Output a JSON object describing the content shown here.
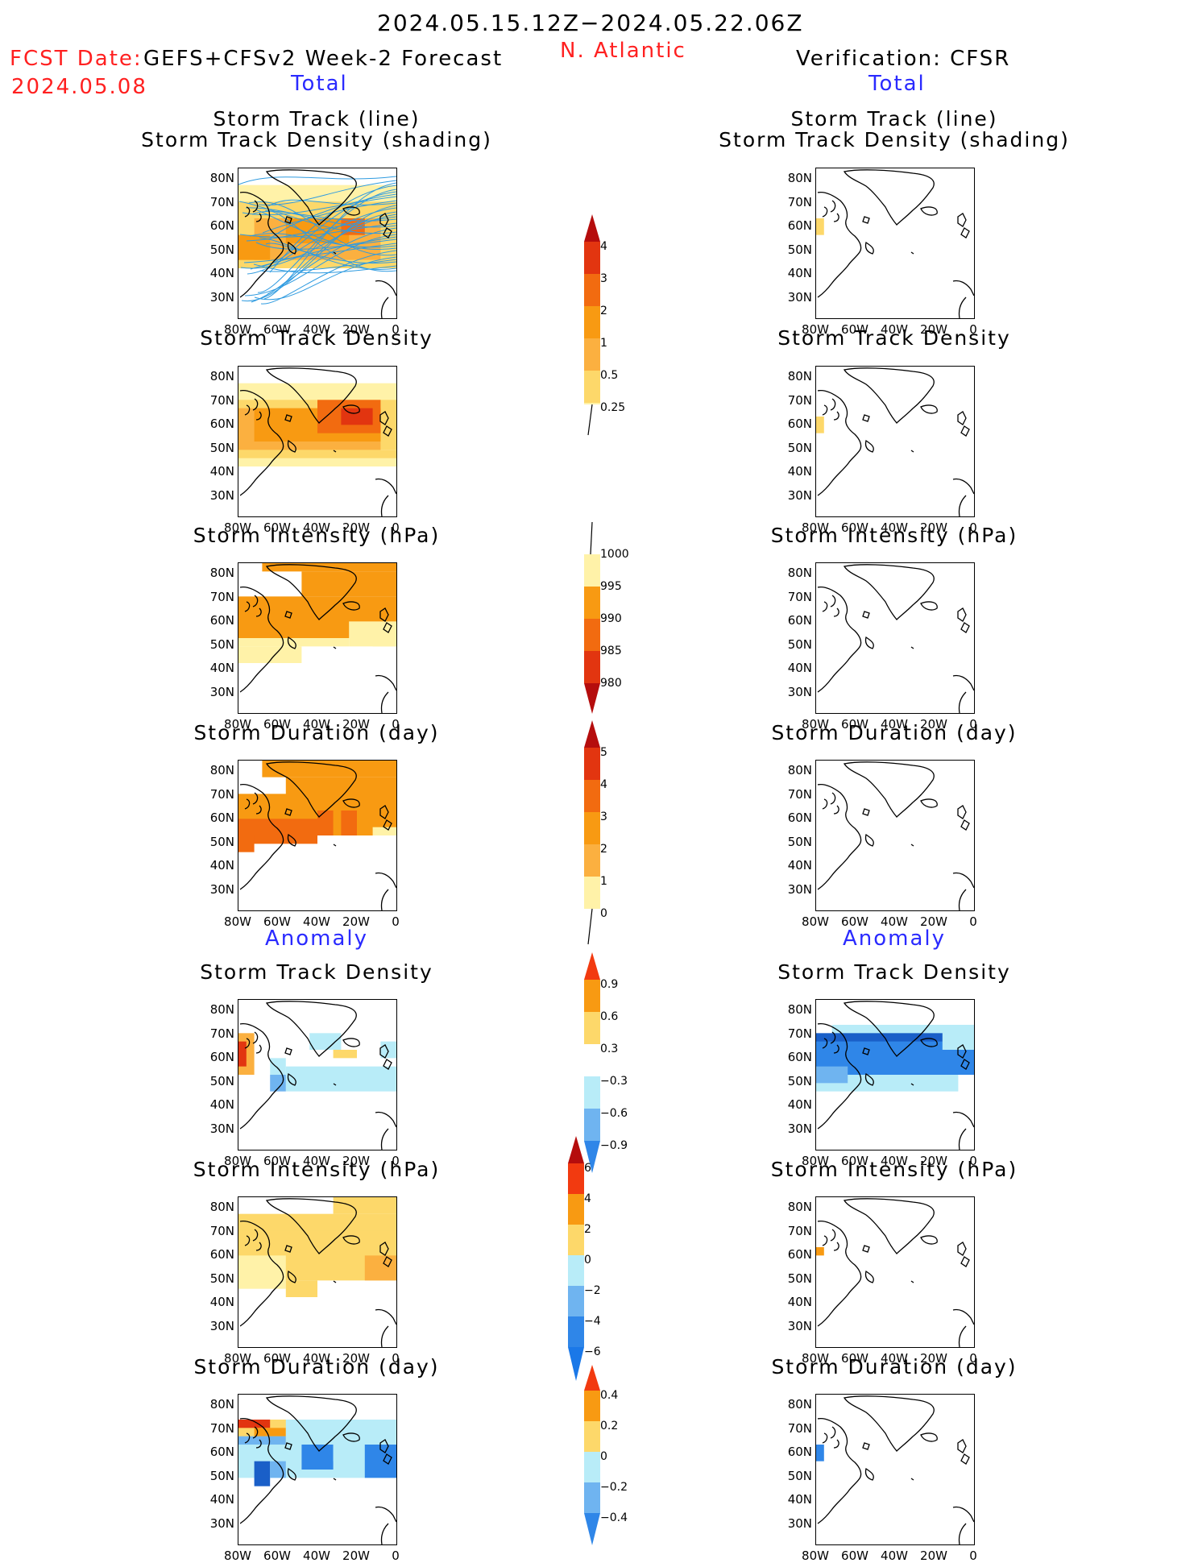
{
  "header": {
    "title": "2024.05.15.12Z−2024.05.22.06Z",
    "region": "N. Atlantic",
    "fcst_label": "FCST Date:",
    "fcst_product": "GEFS+CFSv2 Week-2 Forecast",
    "fcst_date": "2024.05.08",
    "verification": "Verification: CFSR"
  },
  "sections": {
    "total": "Total",
    "anomaly": "Anomaly"
  },
  "panel_titles": {
    "track_line": "Storm Track (line)",
    "track_density_shading": "Storm Track Density (shading)",
    "track_density": "Storm Track Density",
    "intensity": "Storm Intensity (hPa)",
    "duration": "Storm Duration (day)"
  },
  "axes": {
    "lat_ticks": [
      "80N",
      "70N",
      "60N",
      "50N",
      "40N",
      "30N"
    ],
    "lon_ticks": [
      "80W",
      "60W",
      "40W",
      "20W",
      "0"
    ]
  },
  "colorbars": {
    "density_total": [
      "4",
      "3",
      "2",
      "1",
      "0.5",
      "0.25"
    ],
    "intensity_total": [
      "1000",
      "995",
      "990",
      "985",
      "980"
    ],
    "duration_total": [
      "5",
      "4",
      "3",
      "2",
      "1",
      "0"
    ],
    "density_anom": [
      "0.9",
      "0.6",
      "0.3",
      "−0.3",
      "−0.6",
      "−0.9"
    ],
    "intensity_anom": [
      "6",
      "4",
      "2",
      "0",
      "−2",
      "−4",
      "−6"
    ],
    "duration_anom": [
      "0.4",
      "0.2",
      "0",
      "−0.2",
      "−0.4"
    ]
  },
  "colors": {
    "yellow_light": "#fff2a8",
    "yellow": "#fdd86a",
    "orange_light": "#fbb040",
    "orange": "#f89a12",
    "orange_dark": "#f26b10",
    "red": "#e23510",
    "dark_red": "#b50d0d",
    "blue_light": "#b8ecf8",
    "blue_mid": "#6fb4f0",
    "blue": "#2f86e8",
    "blue_dark": "#1a5fc8",
    "track_line": "#2f9be0"
  }
}
